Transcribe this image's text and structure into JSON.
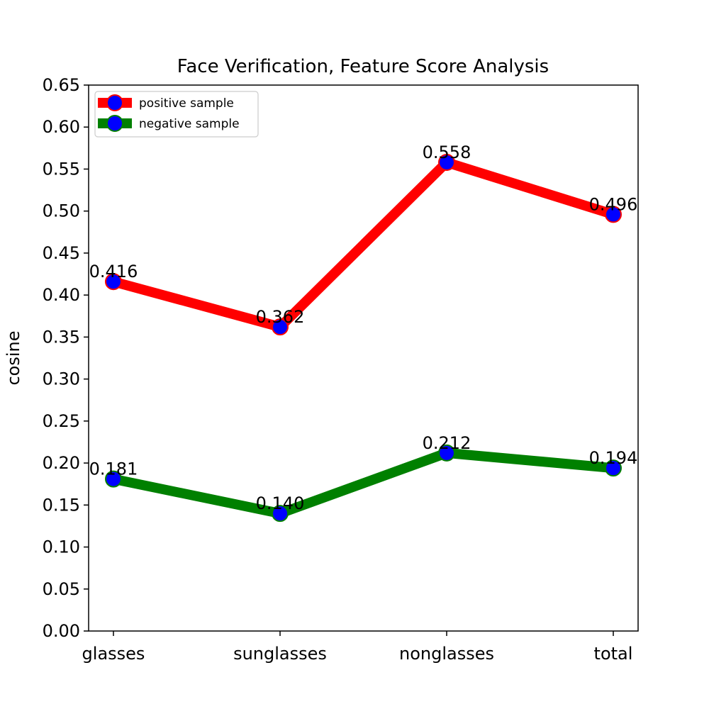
{
  "chart_data": {
    "type": "line",
    "title": "Face Verification, Feature Score Analysis",
    "xlabel": "",
    "ylabel": "cosine",
    "categories": [
      "glasses",
      "sunglasses",
      "nonglasses",
      "total"
    ],
    "ylim": [
      0,
      0.65
    ],
    "yticks": [
      0.0,
      0.05,
      0.1,
      0.15,
      0.2,
      0.25,
      0.3,
      0.35,
      0.4,
      0.45,
      0.5,
      0.55,
      0.6,
      0.65
    ],
    "ytick_labels": [
      "0.00",
      "0.05",
      "0.10",
      "0.15",
      "0.20",
      "0.25",
      "0.30",
      "0.35",
      "0.40",
      "0.45",
      "0.50",
      "0.55",
      "0.60",
      "0.65"
    ],
    "grid": false,
    "legend_position": "top-left",
    "series": [
      {
        "name": "positive sample",
        "values": [
          0.416,
          0.362,
          0.558,
          0.496
        ],
        "labels": [
          "0.416",
          "0.362",
          "0.558",
          "0.496"
        ],
        "line_color": "#ff0000",
        "marker_face": "#0000ff",
        "marker_edge": "#ff0000"
      },
      {
        "name": "negative sample",
        "values": [
          0.181,
          0.14,
          0.212,
          0.194
        ],
        "labels": [
          "0.181",
          "0.140",
          "0.212",
          "0.194"
        ],
        "line_color": "#008000",
        "marker_face": "#0000ff",
        "marker_edge": "#008000"
      }
    ]
  }
}
